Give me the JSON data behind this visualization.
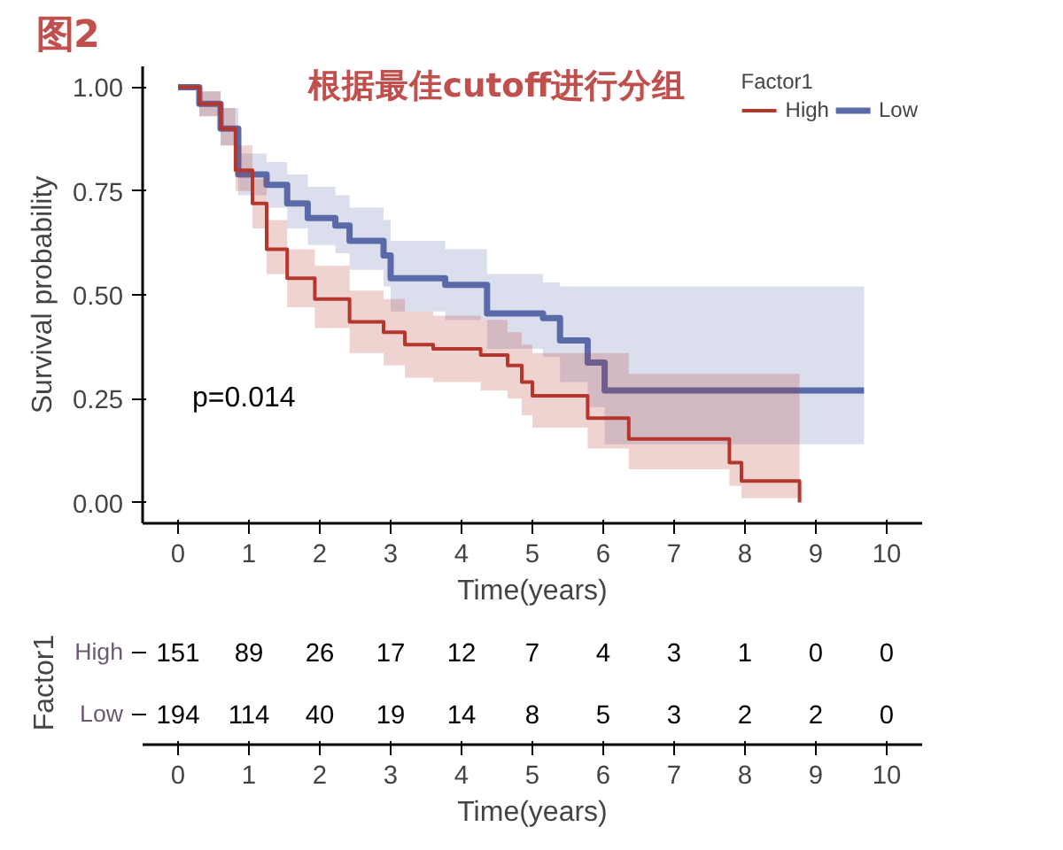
{
  "chart_data": [
    {
      "type": "step",
      "title": "根据最佳cutoff进行分组",
      "annotations": [
        "图2",
        "p=0.014"
      ],
      "xlabel": "Time(years)",
      "ylabel": "Survival probability",
      "legend_title": "Factor1",
      "legend": "top right",
      "grid": false,
      "xlim": [
        -0.5,
        10.5
      ],
      "xticks": [
        0,
        1,
        2,
        3,
        4,
        5,
        6,
        7,
        8,
        9,
        10
      ],
      "ylim": [
        -0.05,
        1.05
      ],
      "yticks": [
        {
          "value": 0,
          "label": "0.00"
        },
        {
          "value": 0.25,
          "label": "0.25"
        },
        {
          "value": 0.5,
          "label": "0.50"
        },
        {
          "value": 0.75,
          "label": "0.75"
        },
        {
          "value": 1,
          "label": "1.00"
        }
      ],
      "series": [
        {
          "name": "High",
          "color": "#b5362d",
          "x": [
            0,
            0.3,
            0.6,
            0.81,
            1.05,
            1.25,
            1.54,
            1.93,
            2.42,
            2.9,
            3.2,
            3.6,
            4.27,
            4.65,
            4.85,
            5.0,
            5.78,
            6.36,
            7.78,
            7.95,
            8.77
          ],
          "values": [
            1.0,
            0.96,
            0.9,
            0.8,
            0.72,
            0.61,
            0.54,
            0.49,
            0.435,
            0.41,
            0.38,
            0.37,
            0.355,
            0.33,
            0.29,
            0.257,
            0.203,
            0.153,
            0.096,
            0.052,
            0.0
          ],
          "lower": [
            1.0,
            0.93,
            0.86,
            0.75,
            0.66,
            0.55,
            0.47,
            0.42,
            0.36,
            0.33,
            0.3,
            0.29,
            0.27,
            0.25,
            0.21,
            0.18,
            0.13,
            0.08,
            0.04,
            0.01,
            0.0
          ],
          "upper": [
            1.0,
            0.99,
            0.95,
            0.86,
            0.78,
            0.68,
            0.61,
            0.57,
            0.51,
            0.49,
            0.46,
            0.45,
            0.44,
            0.41,
            0.38,
            0.36,
            0.36,
            0.31,
            0.31,
            0.31,
            0.31
          ]
        },
        {
          "name": "Low",
          "color": "#5a6aa8",
          "x": [
            0,
            0.3,
            0.6,
            0.85,
            1.25,
            1.54,
            1.83,
            2.22,
            2.42,
            2.9,
            3.0,
            3.77,
            4.36,
            5.15,
            5.39,
            5.78,
            6.02,
            9.68
          ],
          "values": [
            1.0,
            0.96,
            0.9,
            0.79,
            0.765,
            0.72,
            0.685,
            0.667,
            0.63,
            0.595,
            0.54,
            0.524,
            0.455,
            0.444,
            0.39,
            0.337,
            0.27,
            0.27
          ],
          "lower": [
            1.0,
            0.93,
            0.86,
            0.74,
            0.71,
            0.66,
            0.62,
            0.6,
            0.56,
            0.52,
            0.46,
            0.44,
            0.37,
            0.35,
            0.29,
            0.23,
            0.14,
            0.14
          ],
          "upper": [
            1.0,
            0.99,
            0.95,
            0.84,
            0.82,
            0.79,
            0.76,
            0.74,
            0.71,
            0.68,
            0.63,
            0.61,
            0.55,
            0.53,
            0.52,
            0.52,
            0.52,
            0.52
          ]
        }
      ]
    },
    {
      "type": "heatmap",
      "xlabel": "Time(years)",
      "ylabel": "Factor1",
      "data_labels": true,
      "categories": [
        "0",
        "1",
        "2",
        "3",
        "4",
        "5",
        "6",
        "7",
        "8",
        "9",
        "10"
      ],
      "y_categories": [
        "High",
        "Low"
      ],
      "cells": [
        [
          151,
          89,
          26,
          17,
          12,
          7,
          4,
          3,
          1,
          0,
          0
        ],
        [
          194,
          114,
          40,
          19,
          14,
          8,
          5,
          3,
          2,
          2,
          0
        ]
      ]
    }
  ]
}
